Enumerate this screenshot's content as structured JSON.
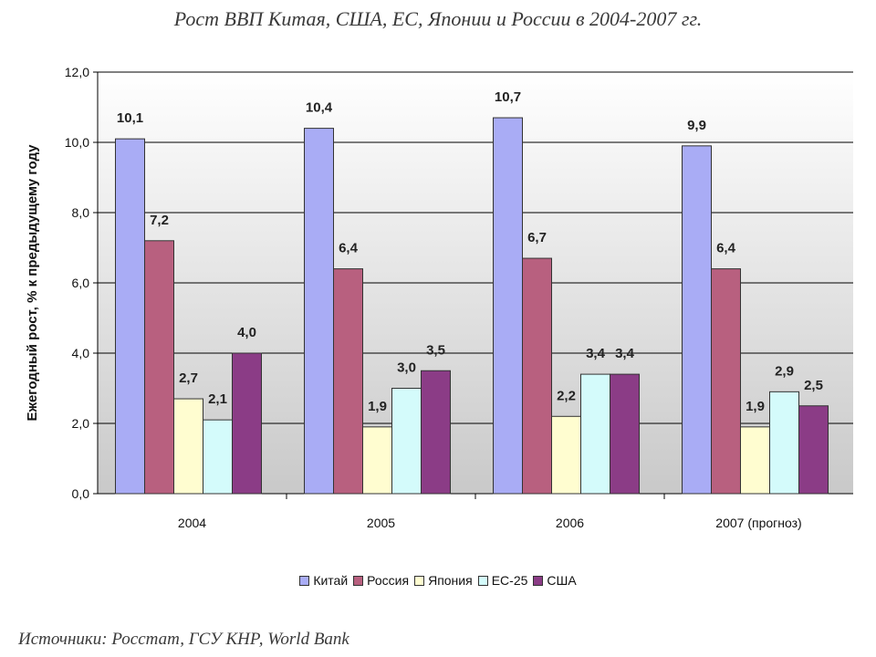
{
  "title": "Рост ВВП Китая, США, ЕС, Японии и России в 2004-2007 гг.",
  "source": "Источники: Росстат, ГСУ КНР, World Bank",
  "colors": {
    "Китай": "#a9acf5",
    "Россия": "#b8607f",
    "Япония": "#fffdd0",
    "ЕС-25": "#d4fbfb",
    "США": "#8b3c86",
    "plot_top": "#ffffff",
    "plot_bottom": "#c9c9c9"
  },
  "chart_data": {
    "type": "bar",
    "title": "Рост ВВП Китая, США, ЕС, Японии и России в 2004-2007 гг.",
    "xlabel": "",
    "ylabel": "Ежегодный рост, % к предыдущему году",
    "ylim": [
      0,
      12
    ],
    "yticks": [
      "0,0",
      "2,0",
      "4,0",
      "6,0",
      "8,0",
      "10,0",
      "12,0"
    ],
    "grid": true,
    "legend_position": "bottom",
    "categories": [
      "2004",
      "2005",
      "2006",
      "2007 (прогноз)"
    ],
    "series": [
      {
        "name": "Китай",
        "values": [
          10.1,
          10.4,
          10.7,
          9.9
        ],
        "labels": [
          "10,1",
          "10,4",
          "10,7",
          "9,9"
        ]
      },
      {
        "name": "Россия",
        "values": [
          7.2,
          6.4,
          6.7,
          6.4
        ],
        "labels": [
          "7,2",
          "6,4",
          "6,7",
          "6,4"
        ]
      },
      {
        "name": "Япония",
        "values": [
          2.7,
          1.9,
          2.2,
          1.9
        ],
        "labels": [
          "2,7",
          "1,9",
          "2,2",
          "1,9"
        ]
      },
      {
        "name": "ЕС-25",
        "values": [
          2.1,
          3.0,
          3.4,
          2.9
        ],
        "labels": [
          "2,1",
          "3,0",
          "3,4",
          "2,9"
        ]
      },
      {
        "name": "США",
        "values": [
          4.0,
          3.5,
          3.4,
          2.5
        ],
        "labels": [
          "4,0",
          "3,5",
          "3,4",
          "2,5"
        ]
      }
    ]
  }
}
